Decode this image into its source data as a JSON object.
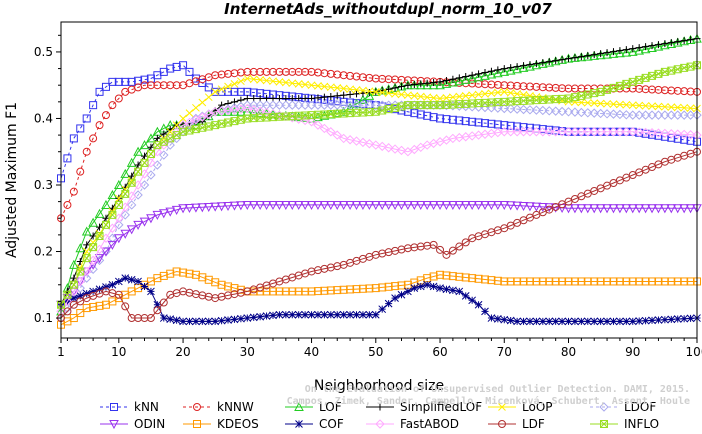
{
  "chart_data": {
    "type": "line",
    "title": "InternetAds_withoutdupl_norm_10_v07",
    "xlabel": "Neighborhood size",
    "ylabel": "Adjusted Maximum F1",
    "xlim": [
      1,
      100
    ],
    "ylim": [
      0.07,
      0.545
    ],
    "xticks": [
      1,
      10,
      20,
      30,
      40,
      50,
      60,
      70,
      80,
      90,
      100
    ],
    "yticks": [
      0.1,
      0.2,
      0.3,
      0.4,
      0.5
    ],
    "grid": false,
    "legend_position": "bottom",
    "credit": "Campos, Zimek, Sander, Campello, Micenková, Schubert, Assent, Houle: On the Evaluation of Unsupervised Outlier Detection. DAMI, 2015.",
    "series": [
      {
        "name": "kNN",
        "color": "#3333ee",
        "dash": "3,3",
        "marker": "square",
        "points": [
          [
            1,
            0.31
          ],
          [
            2,
            0.34
          ],
          [
            3,
            0.37
          ],
          [
            5,
            0.4
          ],
          [
            7,
            0.44
          ],
          [
            9,
            0.455
          ],
          [
            12,
            0.455
          ],
          [
            15,
            0.46
          ],
          [
            18,
            0.475
          ],
          [
            20,
            0.48
          ],
          [
            22,
            0.46
          ],
          [
            25,
            0.44
          ],
          [
            30,
            0.44
          ],
          [
            40,
            0.43
          ],
          [
            50,
            0.42
          ],
          [
            60,
            0.4
          ],
          [
            70,
            0.39
          ],
          [
            80,
            0.38
          ],
          [
            90,
            0.38
          ],
          [
            100,
            0.365
          ]
        ]
      },
      {
        "name": "kNNW",
        "color": "#dd2222",
        "dash": "3,3",
        "marker": "circle",
        "points": [
          [
            1,
            0.25
          ],
          [
            3,
            0.29
          ],
          [
            5,
            0.35
          ],
          [
            7,
            0.39
          ],
          [
            9,
            0.42
          ],
          [
            11,
            0.44
          ],
          [
            14,
            0.45
          ],
          [
            20,
            0.45
          ],
          [
            25,
            0.465
          ],
          [
            30,
            0.47
          ],
          [
            40,
            0.47
          ],
          [
            50,
            0.46
          ],
          [
            60,
            0.455
          ],
          [
            70,
            0.45
          ],
          [
            80,
            0.445
          ],
          [
            90,
            0.445
          ],
          [
            100,
            0.44
          ]
        ]
      },
      {
        "name": "LOF",
        "color": "#22cc22",
        "dash": "none",
        "marker": "triangle-up",
        "points": [
          [
            1,
            0.11
          ],
          [
            3,
            0.18
          ],
          [
            5,
            0.23
          ],
          [
            8,
            0.27
          ],
          [
            10,
            0.3
          ],
          [
            13,
            0.35
          ],
          [
            16,
            0.38
          ],
          [
            18,
            0.39
          ],
          [
            22,
            0.39
          ],
          [
            25,
            0.41
          ],
          [
            30,
            0.41
          ],
          [
            40,
            0.4
          ],
          [
            45,
            0.41
          ],
          [
            50,
            0.44
          ],
          [
            55,
            0.45
          ],
          [
            60,
            0.45
          ],
          [
            70,
            0.47
          ],
          [
            80,
            0.49
          ],
          [
            90,
            0.5
          ],
          [
            100,
            0.52
          ]
        ]
      },
      {
        "name": "SimplifiedLOF",
        "color": "#000000",
        "dash": "none",
        "marker": "plus",
        "points": [
          [
            1,
            0.12
          ],
          [
            3,
            0.16
          ],
          [
            5,
            0.21
          ],
          [
            8,
            0.25
          ],
          [
            10,
            0.28
          ],
          [
            13,
            0.33
          ],
          [
            16,
            0.37
          ],
          [
            19,
            0.39
          ],
          [
            23,
            0.395
          ],
          [
            26,
            0.42
          ],
          [
            30,
            0.43
          ],
          [
            40,
            0.43
          ],
          [
            50,
            0.44
          ],
          [
            55,
            0.45
          ],
          [
            60,
            0.455
          ],
          [
            70,
            0.475
          ],
          [
            80,
            0.49
          ],
          [
            90,
            0.505
          ],
          [
            100,
            0.52
          ]
        ]
      },
      {
        "name": "LoOP",
        "color": "#ffee00",
        "dash": "none",
        "marker": "x",
        "points": [
          [
            1,
            0.12
          ],
          [
            3,
            0.15
          ],
          [
            5,
            0.2
          ],
          [
            8,
            0.24
          ],
          [
            10,
            0.28
          ],
          [
            13,
            0.32
          ],
          [
            16,
            0.36
          ],
          [
            20,
            0.4
          ],
          [
            25,
            0.44
          ],
          [
            30,
            0.46
          ],
          [
            40,
            0.45
          ],
          [
            50,
            0.44
          ],
          [
            60,
            0.43
          ],
          [
            70,
            0.44
          ],
          [
            80,
            0.425
          ],
          [
            90,
            0.42
          ],
          [
            100,
            0.415
          ]
        ]
      },
      {
        "name": "LDOF",
        "color": "#aaaaee",
        "dash": "3,3",
        "marker": "diamond",
        "points": [
          [
            1,
            0.1
          ],
          [
            3,
            0.13
          ],
          [
            5,
            0.16
          ],
          [
            8,
            0.2
          ],
          [
            10,
            0.24
          ],
          [
            14,
            0.3
          ],
          [
            18,
            0.36
          ],
          [
            22,
            0.4
          ],
          [
            25,
            0.41
          ],
          [
            30,
            0.42
          ],
          [
            40,
            0.42
          ],
          [
            50,
            0.42
          ],
          [
            60,
            0.42
          ],
          [
            70,
            0.415
          ],
          [
            80,
            0.41
          ],
          [
            90,
            0.405
          ],
          [
            100,
            0.405
          ]
        ]
      },
      {
        "name": "ODIN",
        "color": "#9933ee",
        "dash": "none",
        "marker": "triangle-down",
        "points": [
          [
            1,
            0.12
          ],
          [
            3,
            0.14
          ],
          [
            5,
            0.17
          ],
          [
            8,
            0.2
          ],
          [
            10,
            0.22
          ],
          [
            13,
            0.24
          ],
          [
            16,
            0.255
          ],
          [
            20,
            0.265
          ],
          [
            30,
            0.27
          ],
          [
            40,
            0.27
          ],
          [
            50,
            0.27
          ],
          [
            60,
            0.27
          ],
          [
            70,
            0.27
          ],
          [
            80,
            0.265
          ],
          [
            90,
            0.265
          ],
          [
            100,
            0.265
          ]
        ]
      },
      {
        "name": "KDEOS",
        "color": "#ff9900",
        "dash": "none",
        "marker": "square",
        "points": [
          [
            1,
            0.09
          ],
          [
            3,
            0.1
          ],
          [
            5,
            0.115
          ],
          [
            8,
            0.12
          ],
          [
            10,
            0.13
          ],
          [
            13,
            0.145
          ],
          [
            16,
            0.16
          ],
          [
            19,
            0.17
          ],
          [
            22,
            0.165
          ],
          [
            26,
            0.15
          ],
          [
            30,
            0.14
          ],
          [
            40,
            0.14
          ],
          [
            50,
            0.145
          ],
          [
            55,
            0.15
          ],
          [
            58,
            0.16
          ],
          [
            60,
            0.165
          ],
          [
            65,
            0.16
          ],
          [
            70,
            0.155
          ],
          [
            80,
            0.155
          ],
          [
            90,
            0.155
          ],
          [
            100,
            0.155
          ]
        ]
      },
      {
        "name": "COF",
        "color": "#000088",
        "dash": "none",
        "marker": "asterisk",
        "points": [
          [
            1,
            0.12
          ],
          [
            3,
            0.13
          ],
          [
            6,
            0.14
          ],
          [
            9,
            0.15
          ],
          [
            11,
            0.16
          ],
          [
            13,
            0.155
          ],
          [
            15,
            0.14
          ],
          [
            17,
            0.1
          ],
          [
            20,
            0.095
          ],
          [
            25,
            0.095
          ],
          [
            30,
            0.1
          ],
          [
            35,
            0.105
          ],
          [
            40,
            0.105
          ],
          [
            45,
            0.105
          ],
          [
            50,
            0.105
          ],
          [
            53,
            0.13
          ],
          [
            56,
            0.145
          ],
          [
            58,
            0.15
          ],
          [
            60,
            0.145
          ],
          [
            63,
            0.14
          ],
          [
            66,
            0.12
          ],
          [
            68,
            0.1
          ],
          [
            72,
            0.095
          ],
          [
            80,
            0.095
          ],
          [
            90,
            0.095
          ],
          [
            100,
            0.1
          ]
        ]
      },
      {
        "name": "FastABOD",
        "color": "#ffaaff",
        "dash": "none",
        "marker": "diamond",
        "points": [
          [
            1,
            0.11
          ],
          [
            3,
            0.14
          ],
          [
            5,
            0.17
          ],
          [
            8,
            0.22
          ],
          [
            10,
            0.25
          ],
          [
            13,
            0.3
          ],
          [
            16,
            0.35
          ],
          [
            20,
            0.39
          ],
          [
            25,
            0.41
          ],
          [
            30,
            0.415
          ],
          [
            40,
            0.395
          ],
          [
            45,
            0.37
          ],
          [
            50,
            0.36
          ],
          [
            55,
            0.35
          ],
          [
            58,
            0.36
          ],
          [
            62,
            0.37
          ],
          [
            70,
            0.38
          ],
          [
            80,
            0.38
          ],
          [
            90,
            0.38
          ],
          [
            100,
            0.375
          ]
        ]
      },
      {
        "name": "LDF",
        "color": "#b03030",
        "dash": "none",
        "marker": "circle",
        "points": [
          [
            1,
            0.1
          ],
          [
            3,
            0.12
          ],
          [
            5,
            0.13
          ],
          [
            8,
            0.14
          ],
          [
            10,
            0.135
          ],
          [
            12,
            0.1
          ],
          [
            15,
            0.1
          ],
          [
            18,
            0.135
          ],
          [
            20,
            0.14
          ],
          [
            25,
            0.13
          ],
          [
            30,
            0.14
          ],
          [
            35,
            0.155
          ],
          [
            40,
            0.17
          ],
          [
            45,
            0.18
          ],
          [
            50,
            0.195
          ],
          [
            55,
            0.205
          ],
          [
            59,
            0.21
          ],
          [
            61,
            0.195
          ],
          [
            65,
            0.22
          ],
          [
            70,
            0.235
          ],
          [
            75,
            0.255
          ],
          [
            80,
            0.275
          ],
          [
            85,
            0.295
          ],
          [
            90,
            0.315
          ],
          [
            95,
            0.335
          ],
          [
            100,
            0.35
          ]
        ]
      },
      {
        "name": "INFLO",
        "color": "#99dd22",
        "dash": "none",
        "marker": "square-x",
        "points": [
          [
            1,
            0.12
          ],
          [
            3,
            0.15
          ],
          [
            5,
            0.19
          ],
          [
            8,
            0.24
          ],
          [
            10,
            0.27
          ],
          [
            13,
            0.32
          ],
          [
            16,
            0.36
          ],
          [
            20,
            0.38
          ],
          [
            25,
            0.39
          ],
          [
            30,
            0.4
          ],
          [
            40,
            0.405
          ],
          [
            50,
            0.41
          ],
          [
            55,
            0.42
          ],
          [
            60,
            0.42
          ],
          [
            70,
            0.425
          ],
          [
            80,
            0.43
          ],
          [
            85,
            0.44
          ],
          [
            90,
            0.455
          ],
          [
            95,
            0.47
          ],
          [
            100,
            0.48
          ]
        ]
      }
    ]
  }
}
